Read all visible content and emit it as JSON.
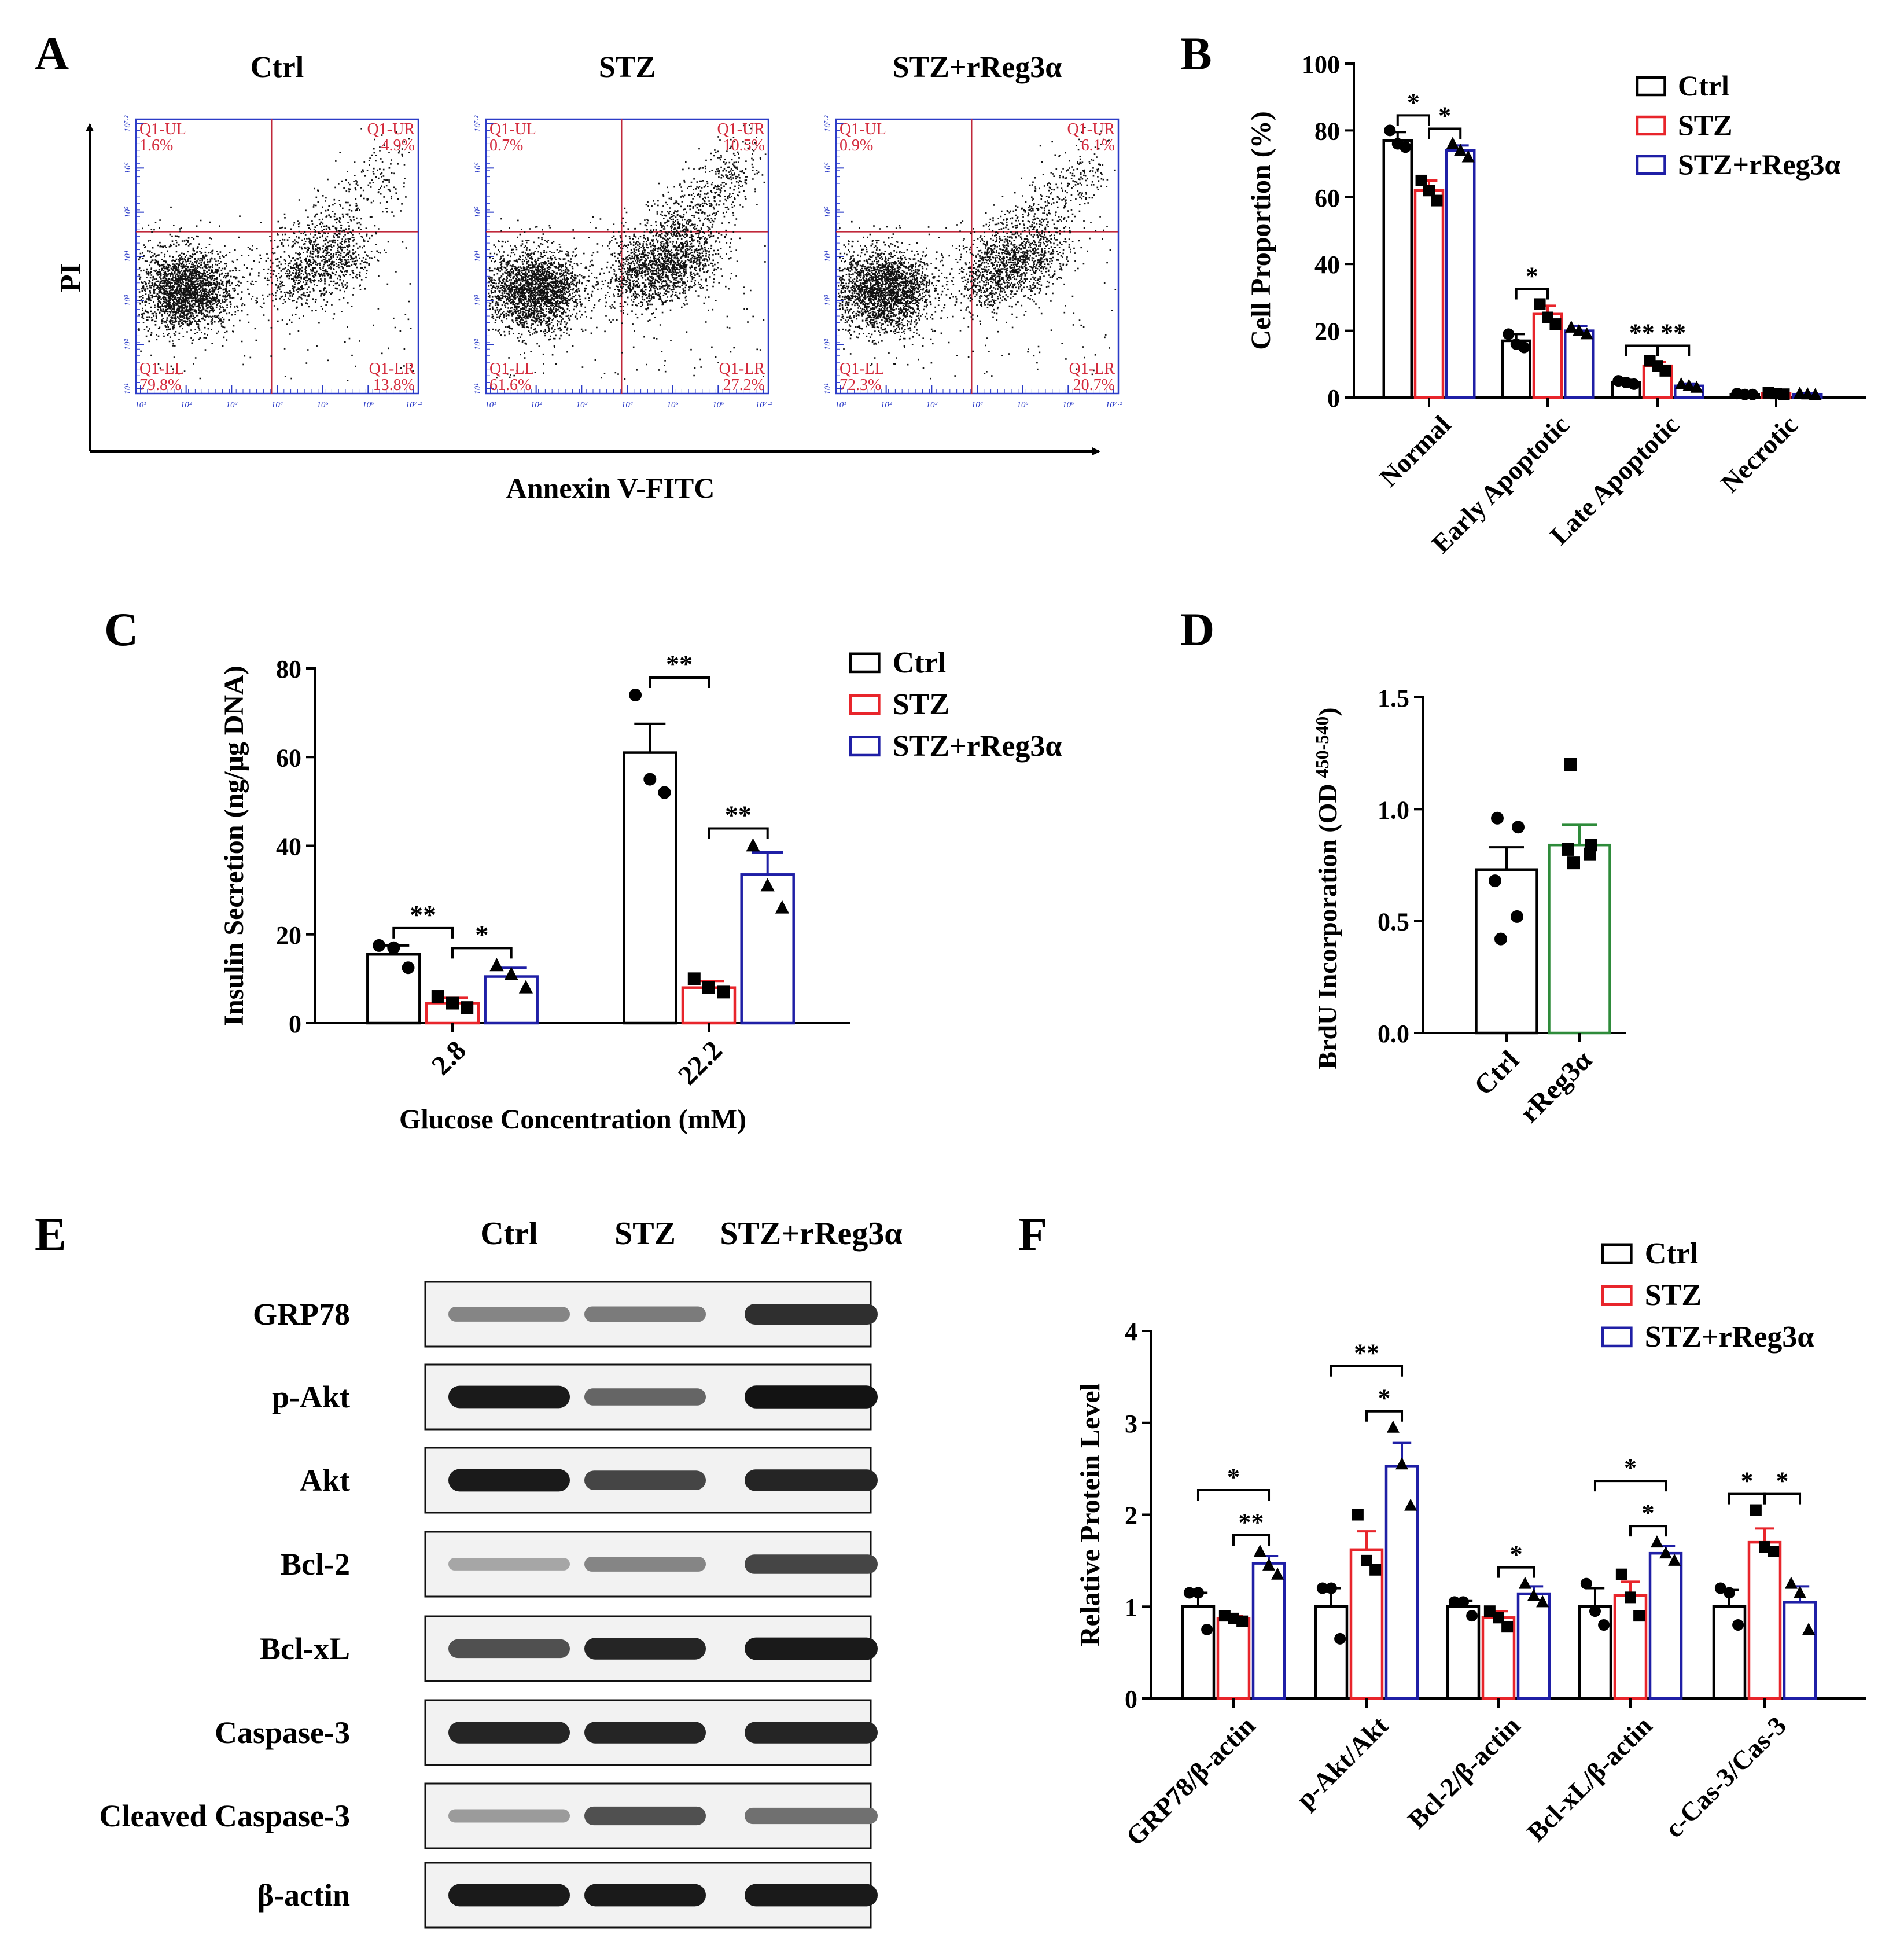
{
  "colors": {
    "ctrl": "#000000",
    "stz": "#e8252b",
    "rreg": "#1f1fa6",
    "green": "#2e8b3a",
    "flow": "#2c3cc8",
    "flowText": "#d42a3c"
  },
  "panels": {
    "A": "A",
    "B": "B",
    "C": "C",
    "D": "D",
    "E": "E",
    "F": "F"
  },
  "legend": {
    "ctrl": "Ctrl",
    "stz": "STZ",
    "rreg": "STZ+rReg3α"
  },
  "chart_data": [
    {
      "id": "A",
      "type": "scatter",
      "title": "Flow cytometry (Annexin V-FITC / PI)",
      "xlabel": "Annexin V-FITC",
      "ylabel": "PI",
      "axis_ticks": [
        "10¹",
        "10²",
        "10³",
        "10⁴",
        "10⁵",
        "10⁶",
        "10⁷·²"
      ],
      "plots": [
        {
          "title": "Ctrl",
          "UL_label": "Q1-UL",
          "UL": "1.6%",
          "UR_label": "Q1-UR",
          "UR": "4.9%",
          "LL_label": "Q1-LL",
          "LL": "79.8%",
          "LR_label": "Q1-LR",
          "LR": "13.8%"
        },
        {
          "title": "STZ",
          "UL_label": "Q1-UL",
          "UL": "0.7%",
          "UR_label": "Q1-UR",
          "UR": "10.5%",
          "LL_label": "Q1-LL",
          "LL": "61.6%",
          "LR_label": "Q1-LR",
          "LR": "27.2%"
        },
        {
          "title": "STZ+rReg3α",
          "UL_label": "Q1-UL",
          "UL": "0.9%",
          "UR_label": "Q1-UR",
          "UR": "6.1%",
          "LL_label": "Q1-LL",
          "LL": "72.3%",
          "LR_label": "Q1-LR",
          "LR": "20.7%"
        }
      ]
    },
    {
      "id": "B",
      "type": "bar",
      "ylabel": "Cell Proportion (%)",
      "ylim": [
        0,
        100
      ],
      "yticks": [
        "0",
        "20",
        "40",
        "60",
        "80",
        "100"
      ],
      "categories": [
        "Normal",
        "Early Apoptotic",
        "Late Apoptotic",
        "Necrotic"
      ],
      "series": [
        {
          "name": "Ctrl",
          "values": [
            77,
            17,
            4.5,
            1
          ],
          "sem": [
            2.5,
            2,
            0.8,
            0.3
          ],
          "points": [
            [
              80,
              76,
              75
            ],
            [
              19,
              16,
              15
            ],
            [
              5,
              4.5,
              4
            ],
            [
              1.2,
              0.9,
              0.9
            ]
          ]
        },
        {
          "name": "STZ",
          "values": [
            62,
            25,
            9.5,
            1.2
          ],
          "sem": [
            3,
            2.5,
            1.2,
            0.3
          ],
          "points": [
            [
              65,
              62,
              59
            ],
            [
              28,
              24,
              22
            ],
            [
              11,
              9.5,
              8
            ],
            [
              1.4,
              1.2,
              1
            ]
          ]
        },
        {
          "name": "STZ+rReg3α",
          "values": [
            74,
            20,
            3.5,
            1
          ],
          "sem": [
            1.5,
            1.5,
            0.7,
            0.3
          ],
          "points": [
            [
              76,
              74,
              72
            ],
            [
              21,
              20,
              19
            ],
            [
              4,
              3.5,
              3
            ],
            [
              1.2,
              1,
              0.8
            ]
          ]
        }
      ],
      "significance": [
        {
          "cat": 0,
          "from": 0,
          "to": 1,
          "label": "*"
        },
        {
          "cat": 0,
          "from": 1,
          "to": 2,
          "label": "*"
        },
        {
          "cat": 1,
          "from": 0,
          "to": 1,
          "label": "*"
        },
        {
          "cat": 2,
          "from": 0,
          "to": 1,
          "label": "**"
        },
        {
          "cat": 2,
          "from": 1,
          "to": 2,
          "label": "**"
        }
      ]
    },
    {
      "id": "C",
      "type": "bar",
      "ylabel": "Insulin Secretion (ng/μg DNA)",
      "xlabel": "Glucose Concentration (mM)",
      "ylim": [
        0,
        80
      ],
      "yticks": [
        "0",
        "20",
        "40",
        "60",
        "80"
      ],
      "categories": [
        "2.8",
        "22.2"
      ],
      "series": [
        {
          "name": "Ctrl",
          "values": [
            15.5,
            61
          ],
          "sem": [
            2,
            6.5
          ],
          "points": [
            [
              17.5,
              17,
              12.5
            ],
            [
              74,
              55,
              52
            ]
          ]
        },
        {
          "name": "STZ",
          "values": [
            4.5,
            8
          ],
          "sem": [
            1.2,
            1.5
          ],
          "points": [
            [
              6,
              4.5,
              3.5
            ],
            [
              10,
              8,
              7
            ]
          ]
        },
        {
          "name": "STZ+rReg3α",
          "values": [
            10.5,
            33.5
          ],
          "sem": [
            2,
            5
          ],
          "points": [
            [
              13,
              11,
              8
            ],
            [
              40,
              31,
              26
            ]
          ]
        }
      ],
      "significance": [
        {
          "cat": 0,
          "from": 0,
          "to": 1,
          "label": "**"
        },
        {
          "cat": 0,
          "from": 1,
          "to": 2,
          "label": "*"
        },
        {
          "cat": 1,
          "from": 0,
          "to": 1,
          "label": "**"
        },
        {
          "cat": 1,
          "from": 1,
          "to": 2,
          "label": "**"
        }
      ]
    },
    {
      "id": "D",
      "type": "bar",
      "ylabel": "BrdU Incorporation (OD",
      "ylabel_sub": "450-540",
      "ylabel_end": ")",
      "ylim": [
        0,
        1.5
      ],
      "yticks": [
        "0.0",
        "0.5",
        "1.0",
        "1.5"
      ],
      "categories": [
        "Ctrl",
        "rReg3α"
      ],
      "values": [
        0.73,
        0.84
      ],
      "sem": [
        0.1,
        0.09
      ],
      "points": [
        [
          0.96,
          0.92,
          0.68,
          0.52,
          0.42
        ],
        [
          1.2,
          0.84,
          0.82,
          0.8,
          0.76
        ]
      ]
    },
    {
      "id": "E",
      "type": "table",
      "title": "Western blot",
      "columns": [
        "Ctrl",
        "STZ",
        "STZ+rReg3α"
      ],
      "rows": [
        "GRP78",
        "p-Akt",
        "Akt",
        "Bcl-2",
        "Bcl-xL",
        "Caspase-3",
        "Cleaved Caspase-3",
        "β-actin"
      ],
      "intensity": [
        [
          0.45,
          0.5,
          0.85
        ],
        [
          0.95,
          0.6,
          0.98
        ],
        [
          0.95,
          0.75,
          0.9
        ],
        [
          0.3,
          0.45,
          0.75
        ],
        [
          0.7,
          0.9,
          0.95
        ],
        [
          0.9,
          0.9,
          0.9
        ],
        [
          0.35,
          0.7,
          0.55
        ],
        [
          0.95,
          0.95,
          0.95
        ]
      ]
    },
    {
      "id": "F",
      "type": "bar",
      "ylabel": "Relative Protein Level",
      "ylim": [
        0,
        4
      ],
      "yticks": [
        "0",
        "1",
        "2",
        "3",
        "4"
      ],
      "categories": [
        "GRP78/β-actin",
        "p-Akt/Akt",
        "Bcl-2/β-actin",
        "Bcl-xL/β-actin",
        "c-Cas-3/Cas-3"
      ],
      "series": [
        {
          "name": "Ctrl",
          "values": [
            1,
            1,
            1,
            1,
            1
          ],
          "sem": [
            0.15,
            0.2,
            0.06,
            0.2,
            0.18
          ],
          "points": [
            [
              1.15,
              1.15,
              0.75
            ],
            [
              1.2,
              1.2,
              0.65
            ],
            [
              1.05,
              1.05,
              0.9
            ],
            [
              1.25,
              0.95,
              0.8
            ],
            [
              1.2,
              1.15,
              0.8
            ]
          ]
        },
        {
          "name": "STZ",
          "values": [
            0.87,
            1.62,
            0.88,
            1.12,
            1.7
          ],
          "sem": [
            0.03,
            0.2,
            0.07,
            0.15,
            0.15
          ],
          "points": [
            [
              0.9,
              0.87,
              0.84
            ],
            [
              2.0,
              1.5,
              1.4
            ],
            [
              0.95,
              0.88,
              0.78
            ],
            [
              1.35,
              1.1,
              0.9
            ],
            [
              2.05,
              1.65,
              1.6
            ]
          ]
        },
        {
          "name": "STZ+rReg3α",
          "values": [
            1.47,
            2.53,
            1.14,
            1.58,
            1.05
          ],
          "sem": [
            0.08,
            0.25,
            0.08,
            0.08,
            0.17
          ],
          "points": [
            [
              1.6,
              1.45,
              1.35
            ],
            [
              2.95,
              2.55,
              2.1
            ],
            [
              1.25,
              1.12,
              1.05
            ],
            [
              1.7,
              1.58,
              1.5
            ],
            [
              1.25,
              1.15,
              0.75
            ]
          ]
        }
      ],
      "significance": [
        {
          "cat": 0,
          "from": 0,
          "to": 2,
          "label": "*",
          "level": 1
        },
        {
          "cat": 0,
          "from": 1,
          "to": 2,
          "label": "**",
          "level": 0
        },
        {
          "cat": 1,
          "from": 0,
          "to": 2,
          "label": "**",
          "level": 1
        },
        {
          "cat": 1,
          "from": 1,
          "to": 2,
          "label": "*",
          "level": 0
        },
        {
          "cat": 2,
          "from": 1,
          "to": 2,
          "label": "*",
          "level": 0
        },
        {
          "cat": 3,
          "from": 0,
          "to": 2,
          "label": "*",
          "level": 1
        },
        {
          "cat": 3,
          "from": 1,
          "to": 2,
          "label": "*",
          "level": 0
        },
        {
          "cat": 4,
          "from": 0,
          "to": 1,
          "label": "*",
          "level": 0
        },
        {
          "cat": 4,
          "from": 1,
          "to": 2,
          "label": "*",
          "level": 0
        }
      ]
    }
  ]
}
